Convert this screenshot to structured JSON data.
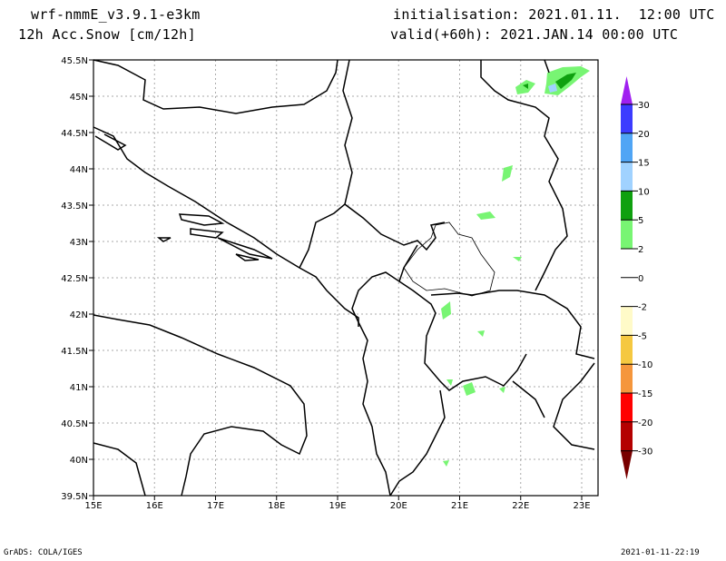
{
  "header": {
    "model": "wrf-nmmE_v3.9.1-e3km",
    "field": "12h Acc.Snow [cm/12h]",
    "initialisation": "initialisation: 2021.01.11.  12:00 UTC",
    "valid": "valid(+60h): 2021.JAN.14 00:00 UTC"
  },
  "footer": {
    "credit": "GrADS: COLA/IGES",
    "timestamp": "2021-01-11-22:19"
  },
  "map": {
    "lat_labels": [
      "45.5N",
      "45N",
      "44.5N",
      "44N",
      "43.5N",
      "43N",
      "42.5N",
      "42N",
      "41.5N",
      "41N",
      "40.5N",
      "40N",
      "39.5N"
    ],
    "lon_labels": [
      "15E",
      "16E",
      "17E",
      "18E",
      "19E",
      "20E",
      "21E",
      "22E",
      "23E"
    ]
  },
  "colorbar": {
    "labels": [
      "30",
      "20",
      "15",
      "10",
      "5",
      "2",
      "0",
      "-2",
      "-5",
      "-10",
      "-15",
      "-20",
      "-30"
    ],
    "colors": [
      "#a020f0",
      "#3c3cff",
      "#50a5f5",
      "#a0d2ff",
      "#0fa00f",
      "#78f573",
      "#ffffff",
      "#ffffff",
      "#fffac8",
      "#f5c841",
      "#f5963c",
      "#ff0000",
      "#b40000",
      "#780000"
    ]
  }
}
